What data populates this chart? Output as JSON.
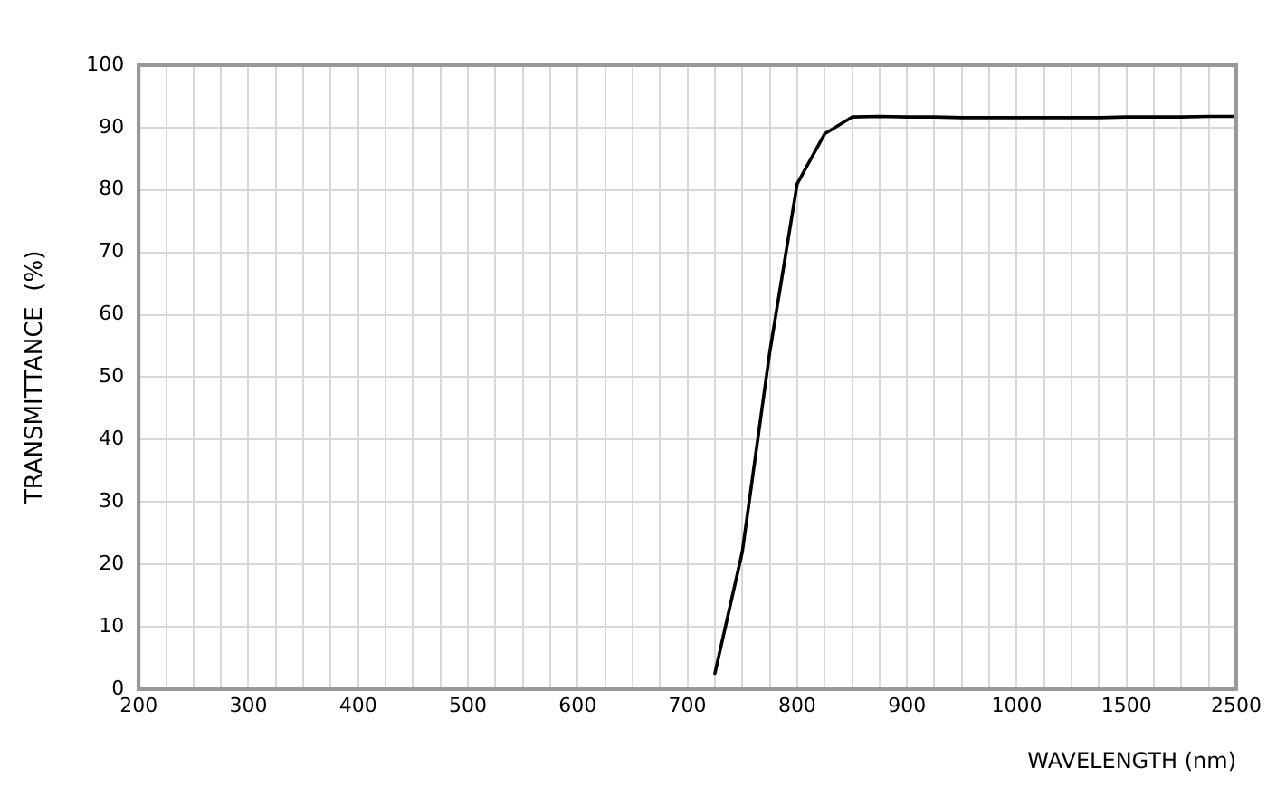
{
  "chart_data": {
    "type": "line",
    "xlabel": "WAVELENGTH (nm)",
    "ylabel": "TRANSMITTANCE  (%)",
    "categories": [
      "200",
      null,
      null,
      null,
      "300",
      null,
      null,
      null,
      "400",
      null,
      null,
      null,
      "500",
      null,
      null,
      null,
      "600",
      null,
      null,
      null,
      "700",
      null,
      null,
      null,
      "800",
      null,
      null,
      null,
      "900",
      null,
      null,
      null,
      "1000",
      null,
      null,
      null,
      "1500",
      null,
      null,
      null,
      "2500"
    ],
    "series": [
      {
        "color": "#000000",
        "values": [
          null,
          null,
          null,
          null,
          null,
          null,
          null,
          null,
          null,
          null,
          null,
          null,
          null,
          null,
          null,
          null,
          null,
          null,
          null,
          null,
          null,
          2.5,
          22,
          54,
          81,
          89,
          91.7,
          91.8,
          91.7,
          91.7,
          91.6,
          91.6,
          91.6,
          91.6,
          91.6,
          91.6,
          91.7,
          91.7,
          91.7,
          91.8,
          91.8
        ]
      }
    ],
    "ylim": [
      0,
      100
    ],
    "yticks": [
      0,
      10,
      20,
      30,
      40,
      50,
      60,
      70,
      80,
      90,
      100
    ],
    "grid": true,
    "legend": false,
    "marker": "none",
    "line_style": "solid"
  }
}
